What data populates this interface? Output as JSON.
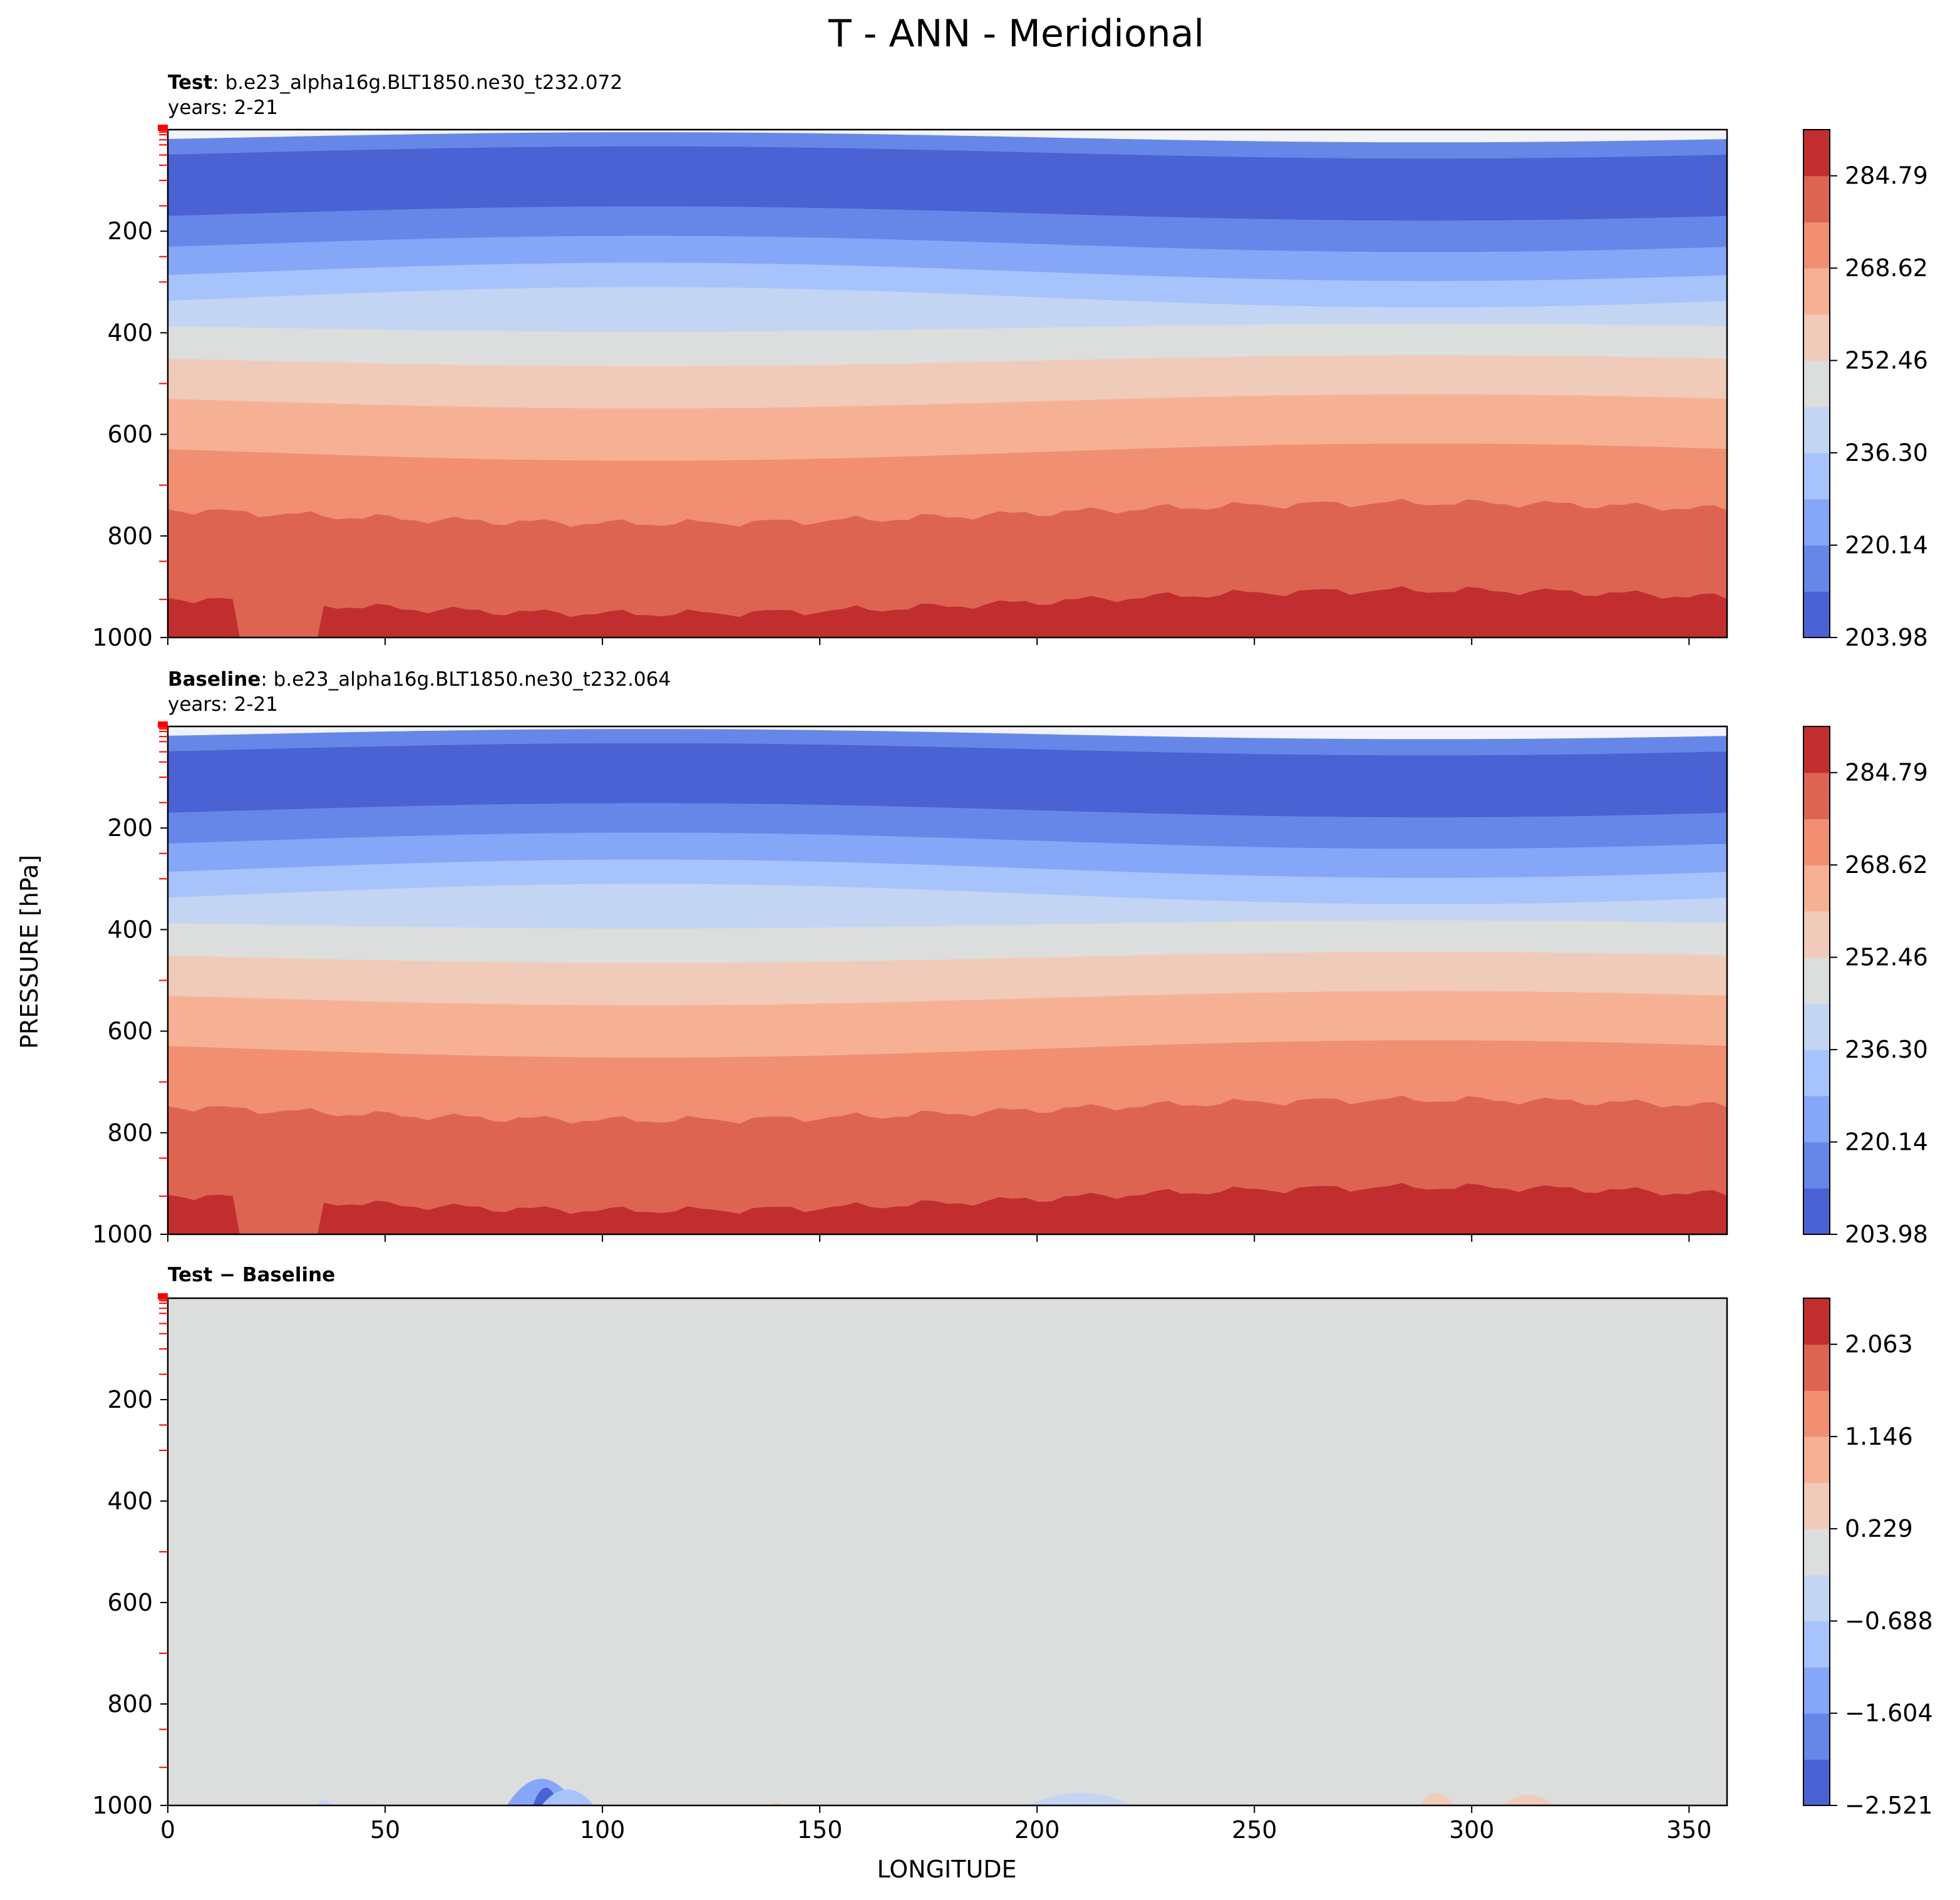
{
  "figure": {
    "title": "T - ANN - Meridional",
    "ylabel": "PRESSURE [hPa]",
    "xlabel": "LONGITUDE"
  },
  "colors": {
    "levels_fill": [
      "#4a62d3",
      "#6687e8",
      "#86a6f7",
      "#a7c3fc",
      "#c4d5f4",
      "#dcdddd",
      "#f1cbb9",
      "#f6b194",
      "#f08f71",
      "#de6452",
      "#c22e30"
    ],
    "red_tick": "#ff0000"
  },
  "chart_data": [
    {
      "type": "contour",
      "panel": "test",
      "title_bold": "Test",
      "title_rest": ": b.e23_alpha16g.BLT1850.ne30_t232.072",
      "subtitle": "years: 2-21",
      "xlim": [
        0,
        358.75
      ],
      "ylim": [
        1000,
        0
      ],
      "xticks": [
        0,
        50,
        100,
        150,
        200,
        250,
        300,
        350
      ],
      "yticks": [
        200,
        400,
        600,
        800,
        1000
      ],
      "colorbar_ticks": [
        "284.79",
        "268.62",
        "252.46",
        "236.30",
        "220.14",
        "203.98"
      ],
      "colorbar_levels": 11,
      "band_pressure_levels": [
        15,
        45,
        165,
        225,
        280,
        330,
        390,
        455,
        535,
        635,
        755,
        930
      ]
    },
    {
      "type": "contour",
      "panel": "baseline",
      "title_bold": "Baseline",
      "title_rest": ": b.e23_alpha16g.BLT1850.ne30_t232.064",
      "subtitle": "years: 2-21",
      "xlim": [
        0,
        358.75
      ],
      "ylim": [
        1000,
        0
      ],
      "xticks": [
        0,
        50,
        100,
        150,
        200,
        250,
        300,
        350
      ],
      "yticks": [
        200,
        400,
        600,
        800,
        1000
      ],
      "colorbar_ticks": [
        "284.79",
        "268.62",
        "252.46",
        "236.30",
        "220.14",
        "203.98"
      ],
      "colorbar_levels": 11,
      "band_pressure_levels": [
        15,
        45,
        165,
        225,
        280,
        330,
        390,
        455,
        535,
        635,
        755,
        930
      ]
    },
    {
      "type": "contour",
      "panel": "difference",
      "title_bold": "Test − Baseline",
      "xlim": [
        0,
        358.75
      ],
      "ylim": [
        1000,
        0
      ],
      "xticks": [
        0,
        50,
        100,
        150,
        200,
        250,
        300,
        350
      ],
      "yticks": [
        200,
        400,
        600,
        800,
        1000
      ],
      "colorbar_ticks": [
        "2.063",
        "1.146",
        "0.229",
        "−0.688",
        "−1.604",
        "−2.521"
      ],
      "colorbar_levels": 11,
      "background_level": 5
    }
  ]
}
